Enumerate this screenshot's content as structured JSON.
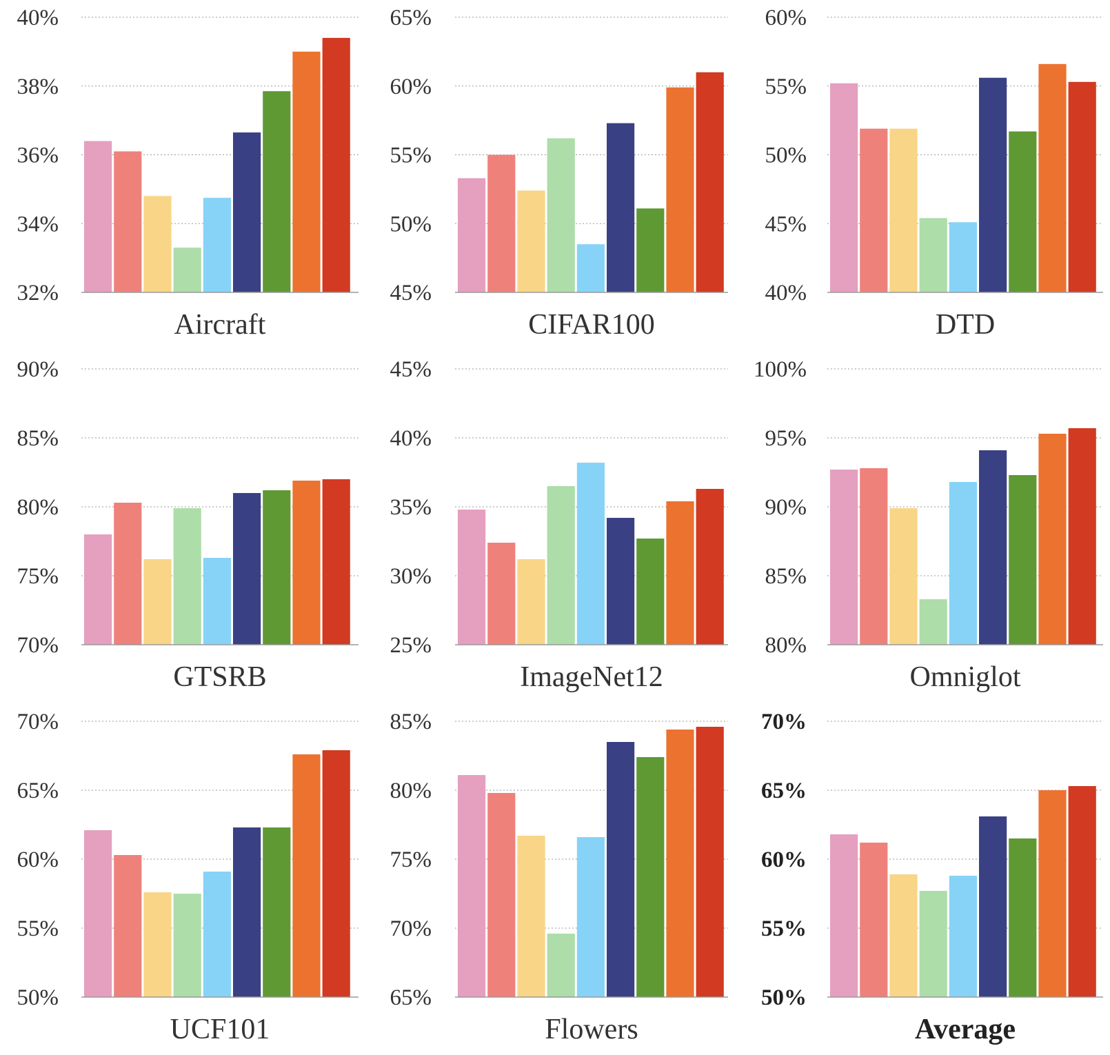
{
  "chart_data": {
    "type": "bar",
    "series_colors": [
      "#e59fbf",
      "#ef817b",
      "#f8d587",
      "#addda9",
      "#87d3f7",
      "#3a4084",
      "#5e9934",
      "#ec7230",
      "#d23a22"
    ],
    "panels": [
      {
        "title": "Aircraft",
        "ylim": [
          32,
          40
        ],
        "ticks": [
          "40%",
          "38%",
          "36%",
          "34%",
          "32%"
        ],
        "values": [
          36.4,
          36.1,
          34.8,
          33.3,
          34.75,
          36.65,
          37.85,
          39.0,
          39.4
        ]
      },
      {
        "title": "CIFAR100",
        "ylim": [
          45,
          65
        ],
        "ticks": [
          "65%",
          "60%",
          "55%",
          "50%",
          "45%"
        ],
        "values": [
          53.3,
          55.0,
          52.4,
          56.2,
          48.5,
          57.3,
          51.1,
          59.9,
          61.0
        ]
      },
      {
        "title": "DTD",
        "ylim": [
          40,
          60
        ],
        "ticks": [
          "60%",
          "55%",
          "50%",
          "45%",
          "40%"
        ],
        "values": [
          55.2,
          51.9,
          51.9,
          45.4,
          45.1,
          55.6,
          51.7,
          56.6,
          55.3
        ]
      },
      {
        "title": "GTSRB",
        "ylim": [
          70,
          90
        ],
        "ticks": [
          "90%",
          "85%",
          "80%",
          "75%",
          "70%"
        ],
        "values": [
          78.0,
          80.3,
          76.2,
          79.9,
          76.3,
          81.0,
          81.2,
          81.9,
          82.0
        ]
      },
      {
        "title": "ImageNet12",
        "ylim": [
          25,
          45
        ],
        "ticks": [
          "45%",
          "40%",
          "35%",
          "30%",
          "25%"
        ],
        "values": [
          34.8,
          32.4,
          31.2,
          36.5,
          38.2,
          34.2,
          32.7,
          35.4,
          36.3
        ]
      },
      {
        "title": "Omniglot",
        "ylim": [
          80,
          100
        ],
        "ticks": [
          "100%",
          "95%",
          "90%",
          "85%",
          "80%"
        ],
        "values": [
          92.7,
          92.8,
          89.9,
          83.3,
          91.8,
          94.1,
          92.3,
          95.3,
          95.7
        ]
      },
      {
        "title": "UCF101",
        "ylim": [
          50,
          70
        ],
        "ticks": [
          "70%",
          "65%",
          "60%",
          "55%",
          "50%"
        ],
        "values": [
          62.1,
          60.3,
          57.6,
          57.5,
          59.1,
          62.3,
          62.3,
          67.6,
          67.9
        ]
      },
      {
        "title": "Flowers",
        "ylim": [
          65,
          85
        ],
        "ticks": [
          "85%",
          "80%",
          "75%",
          "70%",
          "65%"
        ],
        "values": [
          81.1,
          79.8,
          76.7,
          69.6,
          76.6,
          83.5,
          82.4,
          84.4,
          84.6
        ]
      },
      {
        "title": "Average",
        "ylim": [
          50,
          70
        ],
        "ticks": [
          "70%",
          "65%",
          "60%",
          "55%",
          "50%"
        ],
        "values": [
          61.8,
          61.2,
          58.9,
          57.7,
          58.8,
          63.1,
          61.5,
          65.0,
          65.3
        ],
        "bold": true
      }
    ]
  }
}
